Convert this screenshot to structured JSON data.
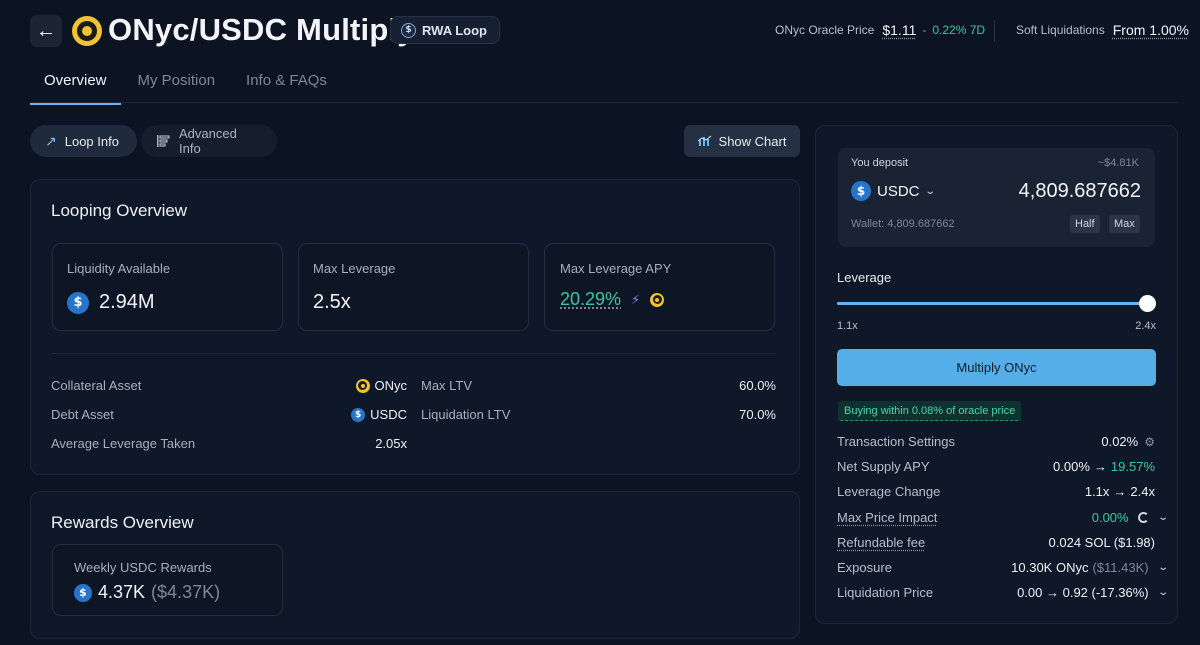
{
  "header": {
    "title": "ONyc/USDC Multiply",
    "tag": "RWA Loop",
    "oracle_label": "ONyc Oracle Price",
    "oracle_price": "$1.11",
    "oracle_sep": "-",
    "oracle_change": "0.22% 7D",
    "soft_liq_label": "Soft Liquidations",
    "soft_liq_value": "From 1.00%"
  },
  "tabs": [
    {
      "label": "Overview",
      "active": true
    },
    {
      "label": "My Position",
      "active": false
    },
    {
      "label": "Info & FAQs",
      "active": false
    }
  ],
  "toolbar": {
    "loop_info": "Loop Info",
    "advanced_info": "Advanced Info",
    "show_chart": "Show Chart"
  },
  "looping": {
    "title": "Looping Overview",
    "stats": [
      {
        "label": "Liquidity Available",
        "value": "2.94M"
      },
      {
        "label": "Max Leverage",
        "value": "2.5x"
      },
      {
        "label": "Max Leverage APY",
        "value": "20.29%"
      }
    ],
    "details_left": [
      {
        "label": "Collateral Asset",
        "value": "ONyc"
      },
      {
        "label": "Debt Asset",
        "value": "USDC"
      },
      {
        "label": "Average Leverage Taken",
        "value": "2.05x"
      }
    ],
    "details_right": [
      {
        "label": "Max LTV",
        "value": "60.0%"
      },
      {
        "label": "Liquidation LTV",
        "value": "70.0%"
      }
    ]
  },
  "rewards": {
    "title": "Rewards Overview",
    "label": "Weekly USDC Rewards",
    "value": "4.37K",
    "value_usd": "($4.37K)"
  },
  "deposit": {
    "label": "You deposit",
    "usd_value": "~$4.81K",
    "token": "USDC",
    "amount": "4,809.687662",
    "wallet": "Wallet: 4,809.687662",
    "half": "Half",
    "max": "Max"
  },
  "leverage": {
    "label": "Leverage",
    "min": "1.1x",
    "max": "2.4x",
    "fraction": 1.0
  },
  "action": {
    "button": "Multiply ONyc",
    "badge": "Buying within 0.08% of oracle price"
  },
  "summary": {
    "tx_settings": {
      "label": "Transaction Settings",
      "value": "0.02%"
    },
    "net_apy": {
      "label": "Net Supply APY",
      "from": "0.00%",
      "arrow": "→",
      "to": "19.57%"
    },
    "lev_change": {
      "label": "Leverage Change",
      "from": "1.1x",
      "arrow": "→",
      "to": "2.4x"
    },
    "price_impact": {
      "label": "Max Price Impact",
      "value": "0.00%"
    },
    "fee": {
      "label": "Refundable fee",
      "value": "0.024 SOL ($1.98)"
    },
    "exposure": {
      "label": "Exposure",
      "value": "10.30K ONyc",
      "usd": "($11.43K)"
    },
    "liq_price": {
      "label": "Liquidation Price",
      "value": "0.00 → 0.92 (-17.36%)"
    }
  },
  "colors": {
    "accent": "#56aee8",
    "positive": "#35c9a0",
    "onyc_brand": "#f2c230",
    "usdc_brand": "#2775ca"
  }
}
